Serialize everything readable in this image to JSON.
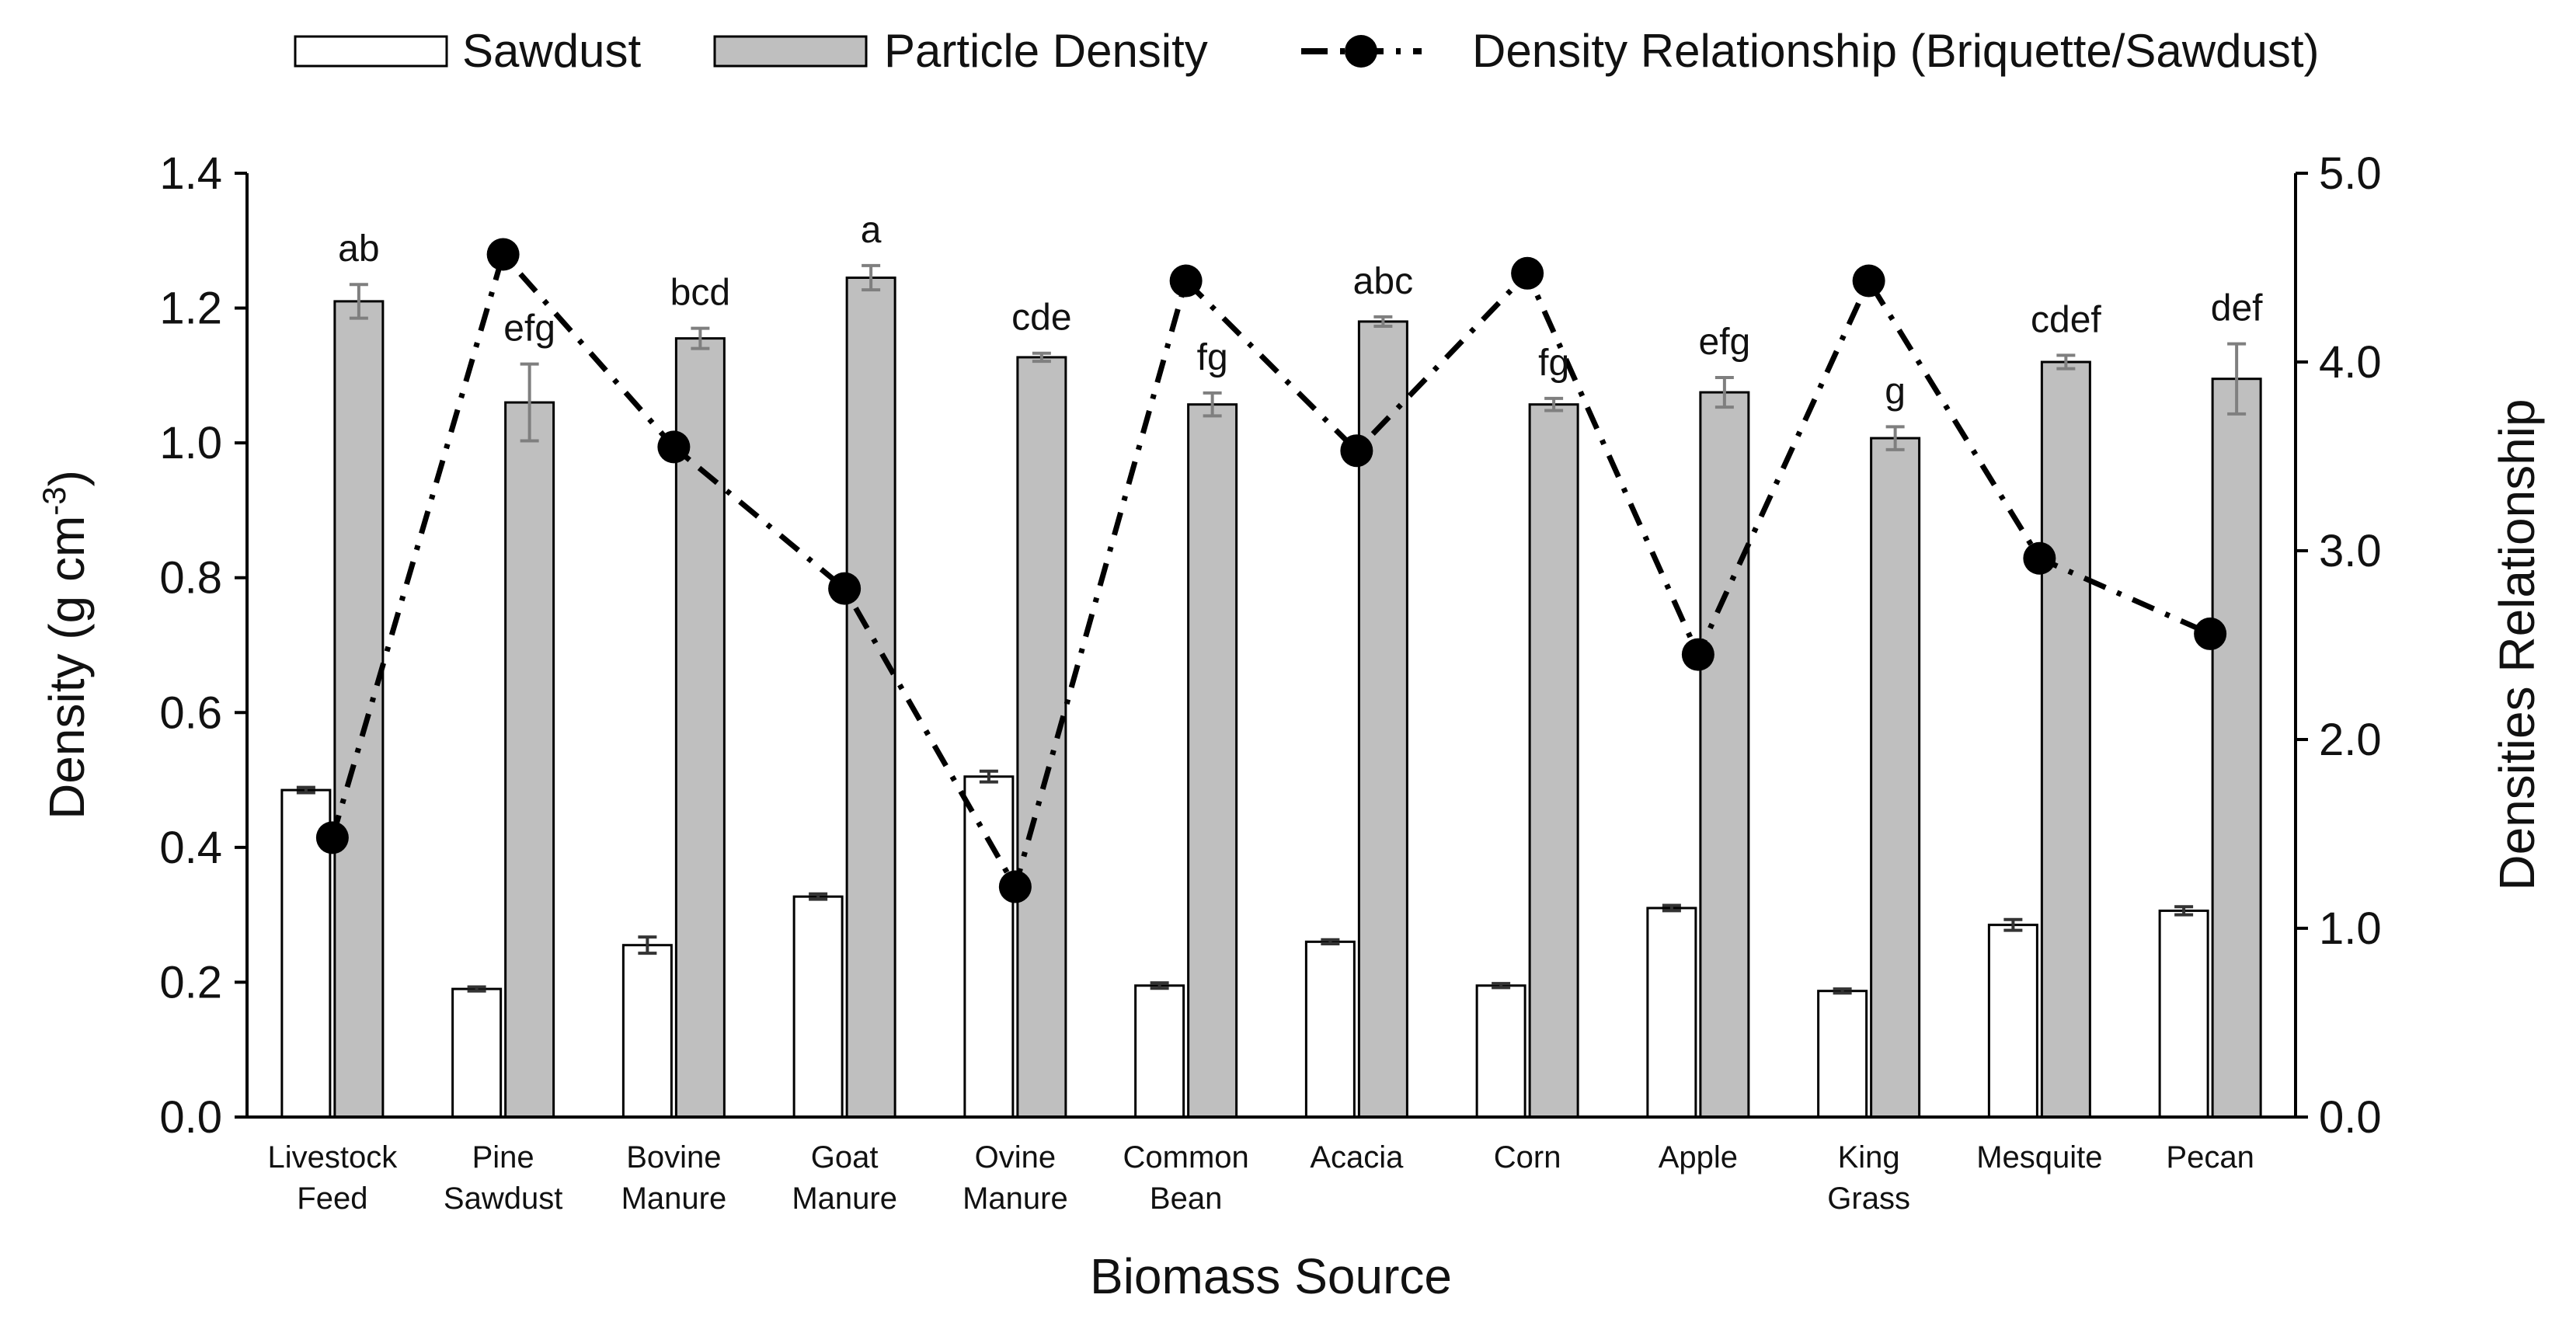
{
  "chart_data": {
    "type": "bar",
    "xlabel": "Biomass Source",
    "ylabel_main": "Density (g cm",
    "ylabel_sup": "-3",
    "ylabel_end": ")",
    "y2label": "Densities Relationship",
    "ylim": [
      0,
      1.4
    ],
    "y2lim": [
      0,
      5.0
    ],
    "yticks": [
      "0.0",
      "0.2",
      "0.4",
      "0.6",
      "0.8",
      "1.0",
      "1.2",
      "1.4"
    ],
    "y2ticks": [
      "0.0",
      "1.0",
      "2.0",
      "3.0",
      "4.0",
      "5.0"
    ],
    "grid": false,
    "legend_position": "top",
    "categories": [
      [
        "Livestock",
        "Feed"
      ],
      [
        "Pine",
        "Sawdust"
      ],
      [
        "Bovine",
        "Manure"
      ],
      [
        "Goat",
        "Manure"
      ],
      [
        "Ovine",
        "Manure"
      ],
      [
        "Common",
        "Bean"
      ],
      [
        "Acacia"
      ],
      [
        "Corn"
      ],
      [
        "Apple"
      ],
      [
        "King",
        "Grass"
      ],
      [
        "Mesquite"
      ],
      [
        "Pecan"
      ]
    ],
    "series": [
      {
        "name": "Sawdust",
        "kind": "bar",
        "color": "#ffffff",
        "values": [
          0.485,
          0.19,
          0.255,
          0.327,
          0.505,
          0.195,
          0.26,
          0.195,
          0.31,
          0.187,
          0.285,
          0.306
        ],
        "errors": [
          0.004,
          0.003,
          0.012,
          0.004,
          0.008,
          0.004,
          0.003,
          0.003,
          0.004,
          0.003,
          0.008,
          0.006
        ]
      },
      {
        "name": "Particle Density",
        "kind": "bar",
        "color": "#bfbfbf",
        "values": [
          1.21,
          1.06,
          1.155,
          1.245,
          1.127,
          1.057,
          1.18,
          1.057,
          1.075,
          1.007,
          1.12,
          1.095
        ],
        "errors": [
          0.025,
          0.057,
          0.015,
          0.018,
          0.006,
          0.017,
          0.007,
          0.009,
          0.022,
          0.017,
          0.01,
          0.052
        ],
        "significance": [
          "ab",
          "efg",
          "bcd",
          "a",
          "cde",
          "fg",
          "abc",
          "fg",
          "efg",
          "g",
          "cdef",
          "def"
        ]
      },
      {
        "name": "Density Relationship (Briquette/Sawdust)",
        "kind": "line",
        "axis": "right",
        "color": "#000000",
        "values": [
          1.48,
          4.57,
          3.55,
          2.8,
          1.22,
          4.43,
          3.53,
          4.47,
          2.45,
          4.43,
          2.96,
          2.56
        ]
      }
    ]
  }
}
